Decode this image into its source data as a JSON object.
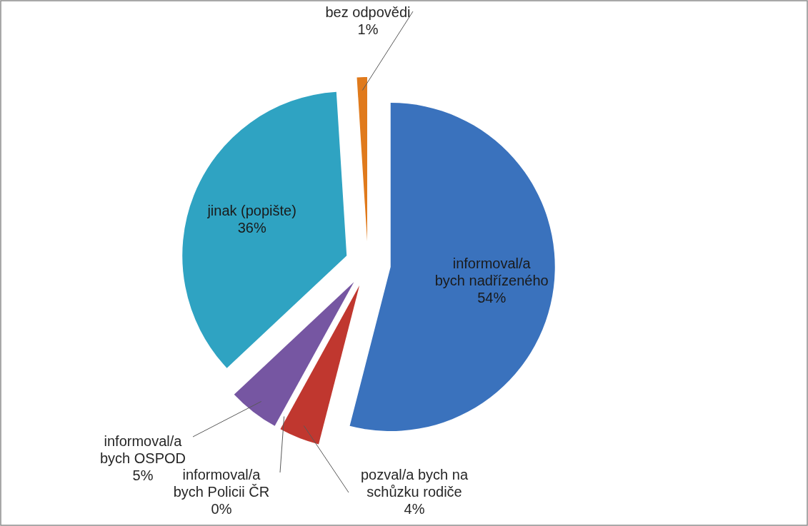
{
  "chart_data": {
    "type": "pie",
    "categories": [
      "informoval/a bych nadřízeného",
      "pozval/a bych na schůzku rodiče",
      "informoval/a bych Policii ČR",
      "informoval/a bych OSPOD",
      "jinak (popište)",
      "bez odpovědi"
    ],
    "values": [
      54,
      4,
      0,
      5,
      36,
      1
    ],
    "value_labels": [
      "54%",
      "4%",
      "0%",
      "5%",
      "36%",
      "1%"
    ],
    "colors": [
      "#3a72bd",
      "#c0372f",
      "#7fa843",
      "#7656a2",
      "#2fa3c2",
      "#e07a1c"
    ]
  }
}
